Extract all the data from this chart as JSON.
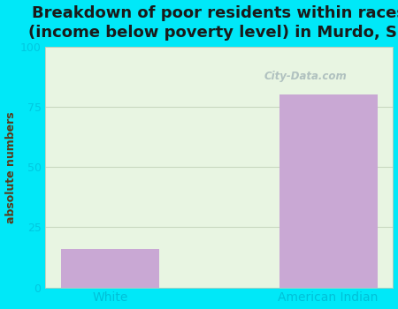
{
  "title": "Breakdown of poor residents within races\n(income below poverty level) in Murdo, SD",
  "categories": [
    "White",
    "American Indian"
  ],
  "values": [
    16,
    80
  ],
  "bar_color": "#c9a8d4",
  "ylabel": "absolute numbers",
  "ylim": [
    0,
    100
  ],
  "yticks": [
    0,
    25,
    50,
    75,
    100
  ],
  "bg_outer": "#00e8f8",
  "bg_plot_top": "#e8f5e2",
  "bg_plot_bottom": "#f5fdf0",
  "title_fontsize": 13,
  "title_color": "#1a1a1a",
  "tick_label_color": "#00c8e0",
  "ylabel_color": "#5a3a1a",
  "xticklabel_color": "#00c0d8",
  "bar_width": 0.45,
  "grid_color": "#c8d8c0",
  "watermark": "City-Data.com",
  "watermark_color": "#aabcbc"
}
